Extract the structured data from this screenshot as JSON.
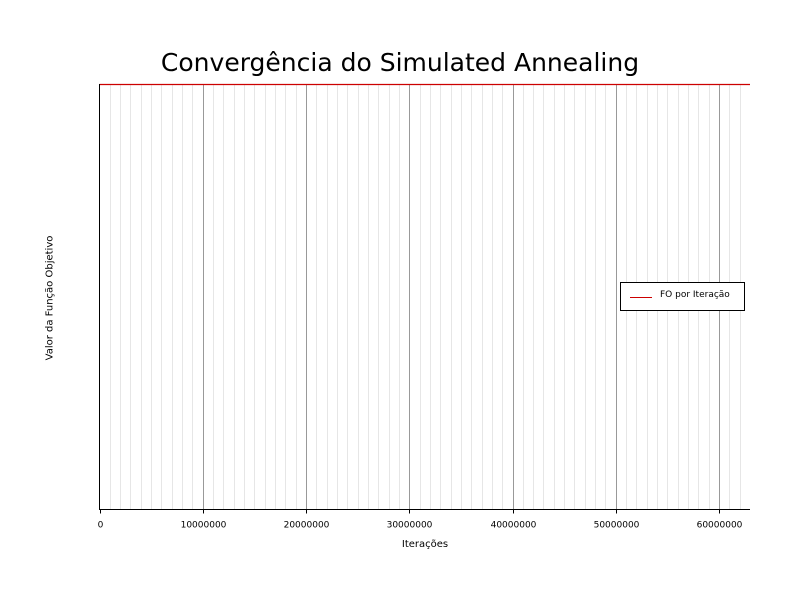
{
  "chart_data": {
    "type": "line",
    "title": "Convergência do Simulated Annealing",
    "xlabel": "Iterações",
    "ylabel": "Valor da Função Objetivo",
    "xlim": [
      0,
      63000000
    ],
    "x_ticks": [
      0,
      10000000,
      20000000,
      30000000,
      40000000,
      50000000,
      60000000
    ],
    "x_tick_labels": [
      "0",
      "10000000",
      "20000000",
      "30000000",
      "40000000",
      "50000000",
      "60000000"
    ],
    "x_minor_step": 1000000,
    "grid": true,
    "legend_position": "center-right",
    "series": [
      {
        "name": "FO por Iteração",
        "color": "#cc0000",
        "x": [
          0,
          63000000
        ],
        "y": [
          1,
          1
        ]
      }
    ]
  },
  "colors": {
    "series_line": "#cc0000",
    "major_grid": "#999999",
    "minor_grid": "#e6e6e6"
  }
}
